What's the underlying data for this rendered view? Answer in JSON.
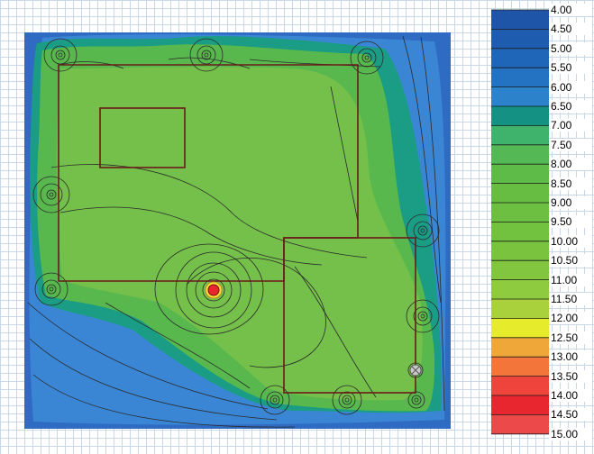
{
  "legend": {
    "labels": [
      "4.00",
      "4.50",
      "5.00",
      "5.50",
      "6.00",
      "6.50",
      "7.00",
      "7.50",
      "8.00",
      "8.50",
      "9.00",
      "9.50",
      "10.00",
      "10.50",
      "11.00",
      "11.50",
      "12.00",
      "12.50",
      "13.00",
      "13.50",
      "14.00",
      "14.50",
      "15.00"
    ],
    "colors": [
      "#1f55a8",
      "#1e5cb0",
      "#1f66b9",
      "#2373c2",
      "#2c83cc",
      "#159184",
      "#3fb36b",
      "#54b954",
      "#5fbb47",
      "#66bd42",
      "#6cbf40",
      "#72c13f",
      "#79c33f",
      "#82c63f",
      "#8ecb3f",
      "#a8d13b",
      "#e6ec2c",
      "#f0a73a",
      "#f3753a",
      "#ee443c",
      "#e8262f",
      "#ec4a4a"
    ]
  },
  "colors": {
    "outer_blue": "#2f6bc2",
    "teal": "#1a9d84",
    "green": "#58b84d",
    "light_green": "#74c04a",
    "room_outline": "#6b1a1a",
    "contour_line": "#2a2a2a"
  },
  "icons": [
    "light-fixture-icon",
    "hotspot-icon",
    "sensor-icon"
  ]
}
